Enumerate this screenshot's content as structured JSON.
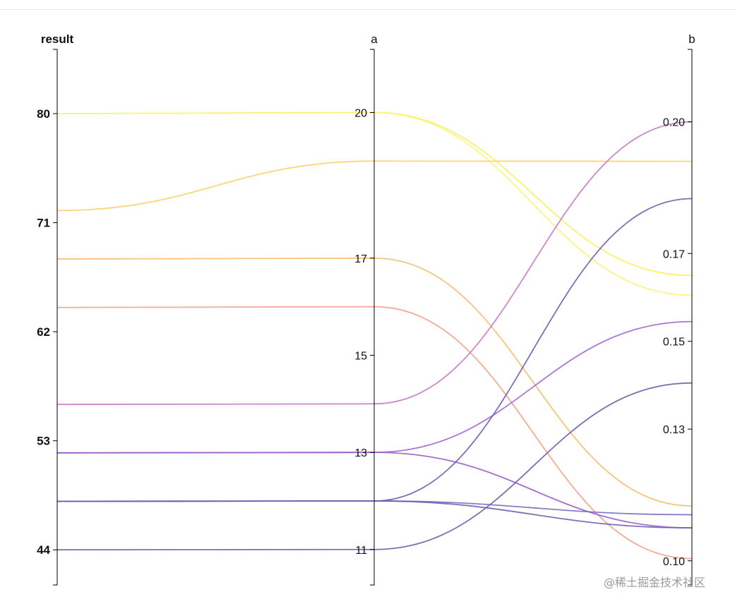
{
  "chart_data": {
    "type": "parallel-coordinates",
    "axes": [
      {
        "key": "result",
        "title": "result",
        "bold": true,
        "ticks": [
          44,
          53,
          62,
          71,
          80
        ],
        "domain": [
          41.1,
          85.3
        ]
      },
      {
        "key": "a",
        "title": "a",
        "bold": false,
        "ticks": [
          11,
          13,
          15,
          17,
          20
        ],
        "domain": [
          10.27,
          21.3
        ]
      },
      {
        "key": "b",
        "title": "b",
        "bold": false,
        "ticks": [
          0.1,
          0.13,
          0.15,
          0.17,
          0.2
        ],
        "domain": [
          0.0945,
          0.2165
        ],
        "decimals": 2
      }
    ],
    "series": [
      {
        "result": 80,
        "a": 20,
        "b": 0.165,
        "color": "#f7f25a"
      },
      {
        "result": 80,
        "a": 20,
        "b": 0.1605,
        "color": "#f8f47a"
      },
      {
        "result": 72,
        "a": 19,
        "b": 0.191,
        "color": "#f9d36b"
      },
      {
        "result": 68,
        "a": 17,
        "b": 0.1125,
        "color": "#f7bd6e"
      },
      {
        "result": 64,
        "a": 16,
        "b": 0.1005,
        "color": "#f3a389"
      },
      {
        "result": 56,
        "a": 14,
        "b": 0.2,
        "color": "#c77bc8"
      },
      {
        "result": 52,
        "a": 13,
        "b": 0.1545,
        "color": "#a168cd"
      },
      {
        "result": 52,
        "a": 13,
        "b": 0.1075,
        "color": "#9a5ec8"
      },
      {
        "result": 48,
        "a": 12,
        "b": 0.1825,
        "color": "#6d62b6"
      },
      {
        "result": 48,
        "a": 12,
        "b": 0.1105,
        "color": "#7a6fc0"
      },
      {
        "result": 48,
        "a": 12,
        "b": 0.1075,
        "color": "#6c62b3"
      },
      {
        "result": 44,
        "a": 11,
        "b": 0.1405,
        "color": "#6a63ae"
      }
    ]
  },
  "watermark": "@稀土掘金技术社区"
}
